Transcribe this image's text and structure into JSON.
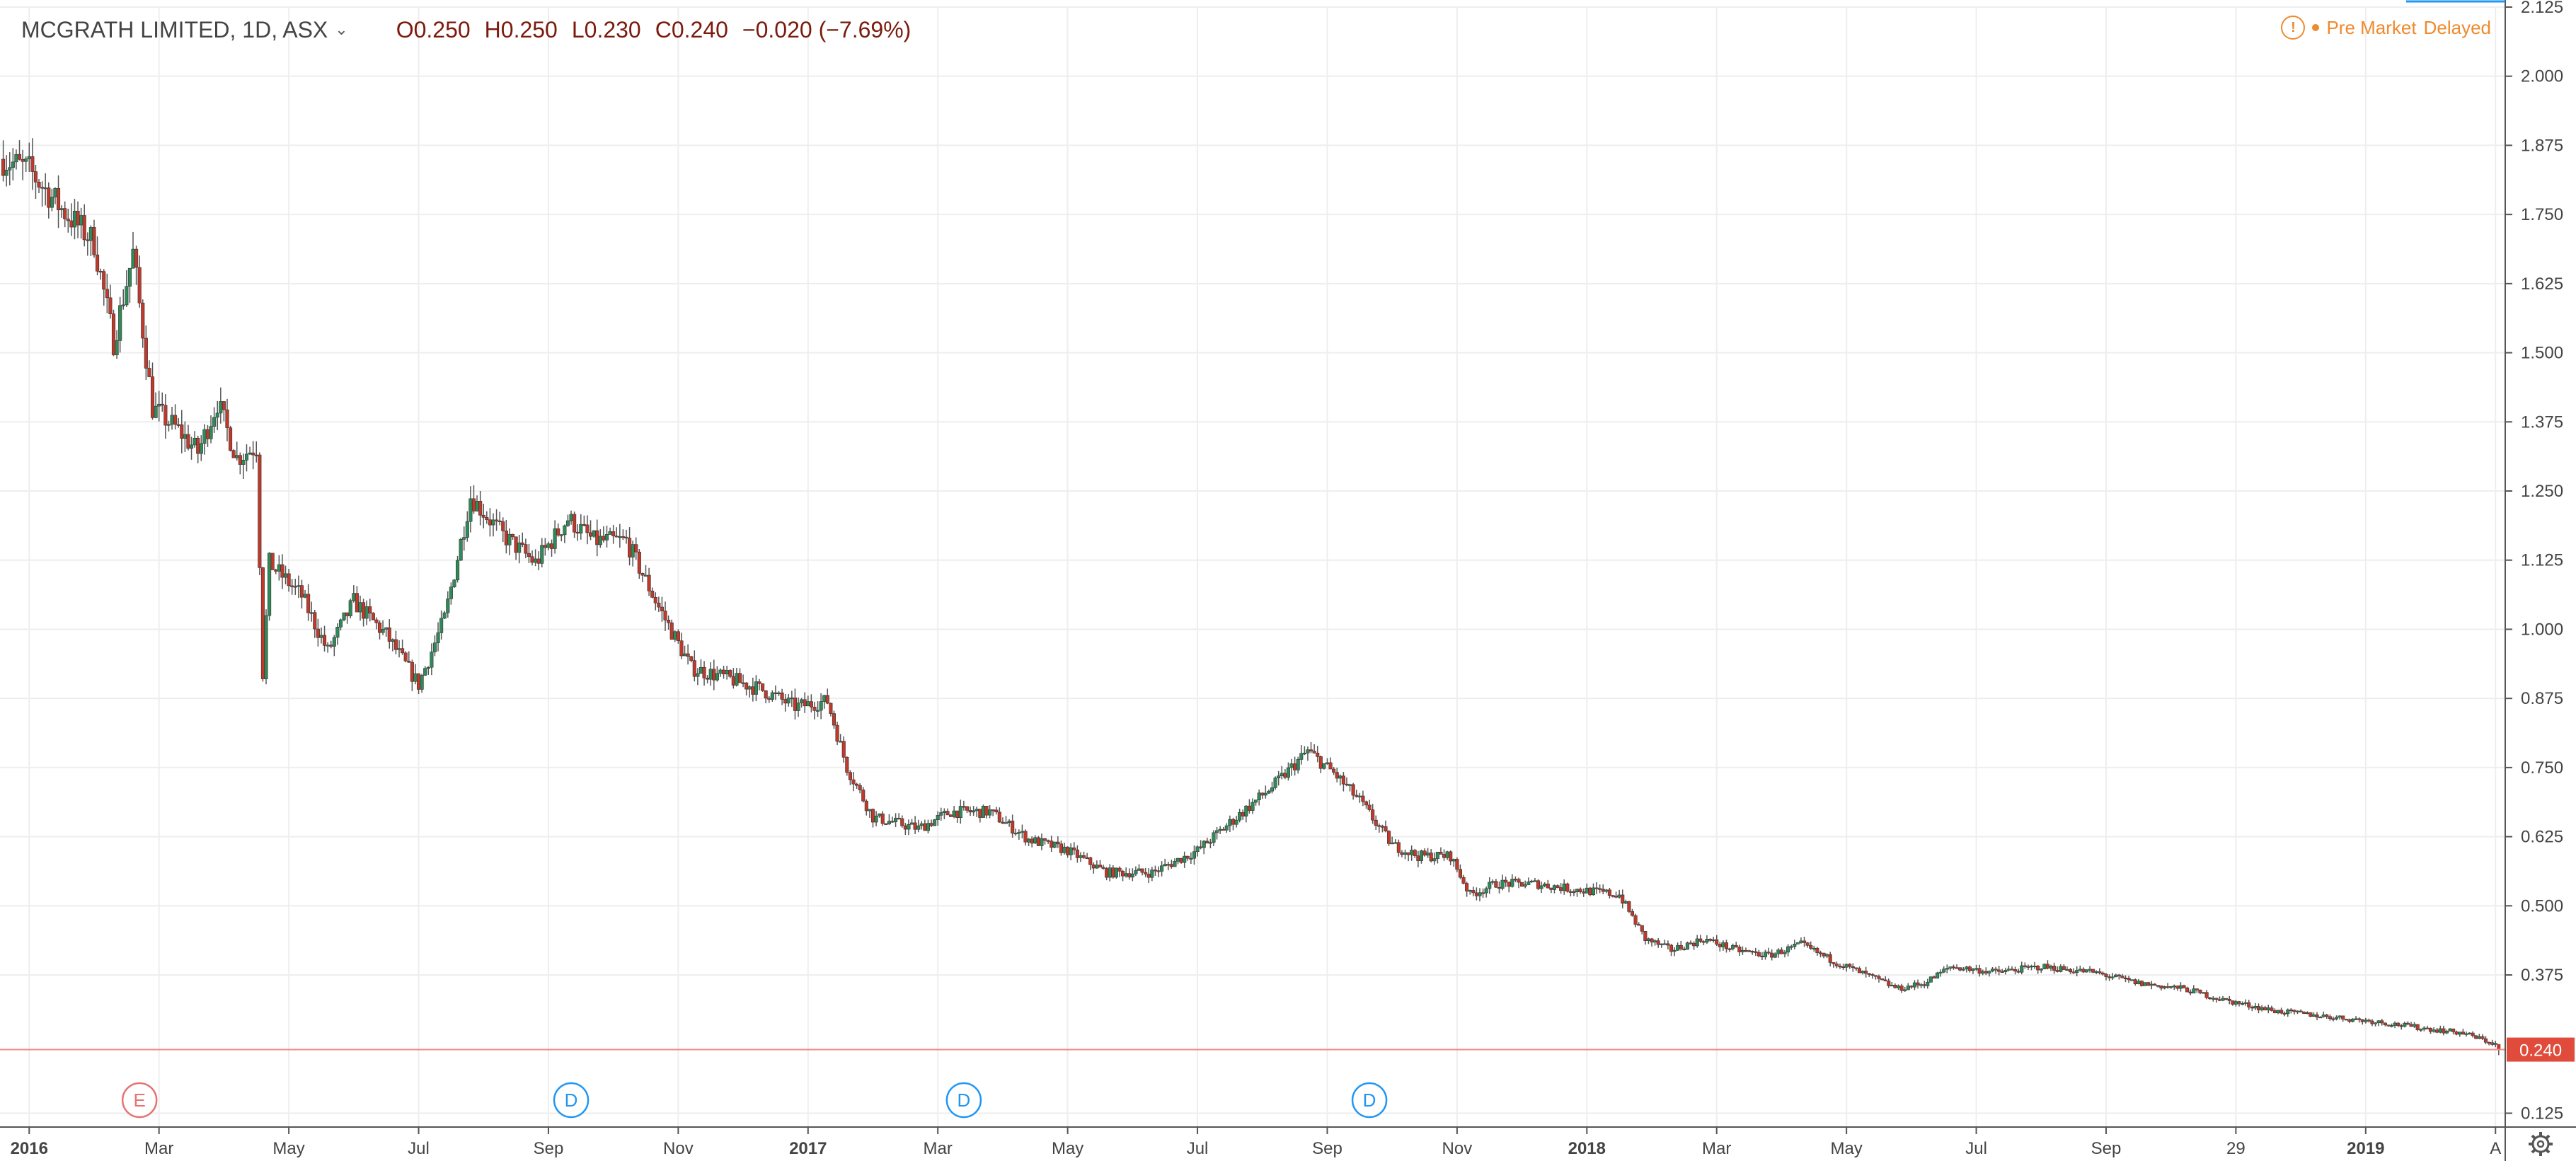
{
  "header": {
    "symbol": "MCGRATH LIMITED, 1D, ASX",
    "open": "O0.250",
    "high": "H0.250",
    "low": "L0.230",
    "close": "C0.240",
    "change": "−0.020 (−7.69%)",
    "status_label": "Pre Market",
    "delay_label": "Delayed"
  },
  "colors": {
    "up": "#2f8a5a",
    "down": "#c0392b",
    "wick": "#555555",
    "grid": "#eeeeee",
    "status": "#ef8a2d",
    "price_tag": "#e04b3b"
  },
  "chart_data": {
    "type": "candlestick",
    "title": "MCGRATH LIMITED, 1D, ASX",
    "ylim": [
      0.1,
      2.125
    ],
    "y_ticks": [
      "2.125",
      "2.000",
      "1.875",
      "1.750",
      "1.625",
      "1.500",
      "1.375",
      "1.250",
      "1.125",
      "1.000",
      "0.875",
      "0.750",
      "0.625",
      "0.500",
      "0.375",
      "0.240",
      "0.125"
    ],
    "y_tick_values": [
      2.125,
      2.0,
      1.875,
      1.75,
      1.625,
      1.5,
      1.375,
      1.25,
      1.125,
      1.0,
      0.875,
      0.75,
      0.625,
      0.5,
      0.375,
      0.24,
      0.125
    ],
    "x_ticks": [
      "2016",
      "Mar",
      "May",
      "Jul",
      "Sep",
      "Nov",
      "2017",
      "Mar",
      "May",
      "Jul",
      "Sep",
      "Nov",
      "2018",
      "Mar",
      "May",
      "Jul",
      "Sep",
      "29",
      "2019",
      "A"
    ],
    "x_tick_bold": [
      true,
      false,
      false,
      false,
      false,
      false,
      true,
      false,
      false,
      false,
      false,
      false,
      true,
      false,
      false,
      false,
      false,
      false,
      true,
      false
    ],
    "x_tick_months": [
      0,
      2,
      4,
      6,
      8,
      10,
      12,
      14,
      16,
      18,
      20,
      22,
      24,
      26,
      28,
      30,
      32,
      34,
      36,
      38
    ],
    "x_range_months": [
      -0.45,
      38.15
    ],
    "last_price": "0.240",
    "price_series": [
      {
        "m": -0.4,
        "p": 1.85
      },
      {
        "m": 0.0,
        "p": 1.83
      },
      {
        "m": 0.5,
        "p": 1.76
      },
      {
        "m": 1.0,
        "p": 1.7
      },
      {
        "m": 1.3,
        "p": 1.52
      },
      {
        "m": 1.6,
        "p": 1.68
      },
      {
        "m": 1.9,
        "p": 1.4
      },
      {
        "m": 2.3,
        "p": 1.36
      },
      {
        "m": 2.6,
        "p": 1.32
      },
      {
        "m": 2.9,
        "p": 1.41
      },
      {
        "m": 3.2,
        "p": 1.31
      },
      {
        "m": 3.5,
        "p": 1.33
      },
      {
        "m": 3.6,
        "p": 0.92
      },
      {
        "m": 3.7,
        "p": 1.12
      },
      {
        "m": 4.2,
        "p": 1.06
      },
      {
        "m": 4.6,
        "p": 0.96
      },
      {
        "m": 5.0,
        "p": 1.05
      },
      {
        "m": 5.5,
        "p": 0.99
      },
      {
        "m": 6.0,
        "p": 0.9
      },
      {
        "m": 6.4,
        "p": 1.02
      },
      {
        "m": 6.8,
        "p": 1.24
      },
      {
        "m": 7.3,
        "p": 1.17
      },
      {
        "m": 7.8,
        "p": 1.12
      },
      {
        "m": 8.3,
        "p": 1.2
      },
      {
        "m": 8.7,
        "p": 1.16
      },
      {
        "m": 9.2,
        "p": 1.16
      },
      {
        "m": 9.7,
        "p": 1.04
      },
      {
        "m": 10.2,
        "p": 0.93
      },
      {
        "m": 10.8,
        "p": 0.91
      },
      {
        "m": 11.3,
        "p": 0.89
      },
      {
        "m": 11.8,
        "p": 0.86
      },
      {
        "m": 12.3,
        "p": 0.87
      },
      {
        "m": 12.6,
        "p": 0.75
      },
      {
        "m": 13.0,
        "p": 0.66
      },
      {
        "m": 13.7,
        "p": 0.64
      },
      {
        "m": 14.2,
        "p": 0.67
      },
      {
        "m": 14.8,
        "p": 0.67
      },
      {
        "m": 15.4,
        "p": 0.62
      },
      {
        "m": 16.0,
        "p": 0.6
      },
      {
        "m": 16.6,
        "p": 0.56
      },
      {
        "m": 17.3,
        "p": 0.56
      },
      {
        "m": 18.0,
        "p": 0.6
      },
      {
        "m": 18.5,
        "p": 0.65
      },
      {
        "m": 19.2,
        "p": 0.72
      },
      {
        "m": 19.7,
        "p": 0.78
      },
      {
        "m": 20.1,
        "p": 0.74
      },
      {
        "m": 20.5,
        "p": 0.69
      },
      {
        "m": 21.0,
        "p": 0.61
      },
      {
        "m": 21.4,
        "p": 0.59
      },
      {
        "m": 21.9,
        "p": 0.59
      },
      {
        "m": 22.2,
        "p": 0.52
      },
      {
        "m": 22.6,
        "p": 0.54
      },
      {
        "m": 23.2,
        "p": 0.54
      },
      {
        "m": 23.8,
        "p": 0.53
      },
      {
        "m": 24.5,
        "p": 0.52
      },
      {
        "m": 24.9,
        "p": 0.44
      },
      {
        "m": 25.3,
        "p": 0.42
      },
      {
        "m": 25.8,
        "p": 0.44
      },
      {
        "m": 26.3,
        "p": 0.42
      },
      {
        "m": 26.8,
        "p": 0.41
      },
      {
        "m": 27.3,
        "p": 0.43
      },
      {
        "m": 27.8,
        "p": 0.4
      },
      {
        "m": 28.2,
        "p": 0.38
      },
      {
        "m": 28.8,
        "p": 0.35
      },
      {
        "m": 29.2,
        "p": 0.36
      },
      {
        "m": 29.6,
        "p": 0.39
      },
      {
        "m": 30.3,
        "p": 0.38
      },
      {
        "m": 31.0,
        "p": 0.39
      },
      {
        "m": 31.8,
        "p": 0.38
      },
      {
        "m": 32.5,
        "p": 0.36
      },
      {
        "m": 33.2,
        "p": 0.35
      },
      {
        "m": 33.8,
        "p": 0.33
      },
      {
        "m": 34.6,
        "p": 0.31
      },
      {
        "m": 35.4,
        "p": 0.3
      },
      {
        "m": 36.2,
        "p": 0.29
      },
      {
        "m": 36.8,
        "p": 0.28
      },
      {
        "m": 37.5,
        "p": 0.27
      },
      {
        "m": 38.0,
        "p": 0.25
      },
      {
        "m": 38.05,
        "p": 0.24
      }
    ],
    "event_markers": [
      {
        "label": "E",
        "m": 1.7,
        "color": "#e57373"
      },
      {
        "label": "D",
        "m": 8.35,
        "color": "#2196f3"
      },
      {
        "label": "D",
        "m": 14.4,
        "color": "#2196f3"
      },
      {
        "label": "D",
        "m": 20.65,
        "color": "#2196f3"
      }
    ]
  }
}
